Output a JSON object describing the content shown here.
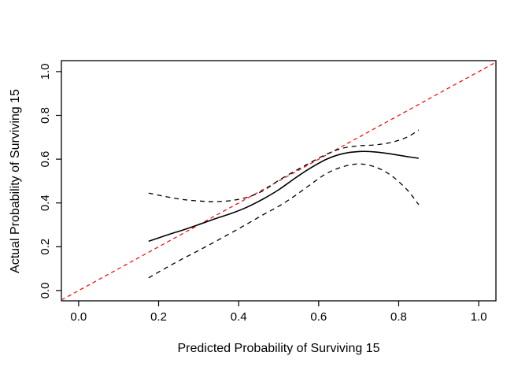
{
  "figure": {
    "background": "#ffffff",
    "frame_color": "#000000"
  },
  "chart_data": {
    "type": "line",
    "title": "",
    "xlabel": "Predicted Probability of Surviving 15",
    "ylabel": "Actual Probability of Surviving 15",
    "xlim": [
      -0.043,
      1.043
    ],
    "ylim": [
      -0.047,
      1.05
    ],
    "grid": false,
    "legend_position": "none",
    "x_ticks": {
      "values": [
        0.0,
        0.2,
        0.4,
        0.6,
        0.8,
        1.0
      ],
      "labels": [
        "0.0",
        "0.2",
        "0.4",
        "0.6",
        "0.8",
        "1.0"
      ]
    },
    "y_ticks": {
      "values": [
        0.0,
        0.2,
        0.4,
        0.6,
        0.8,
        1.0
      ],
      "labels": [
        "0.0",
        "0.2",
        "0.4",
        "0.6",
        "0.8",
        "1.0"
      ]
    },
    "series": [
      {
        "name": "ideal-line",
        "color": "#ff0000",
        "style": "dashed",
        "width": 1.2,
        "x": [
          -0.043,
          1.043
        ],
        "y": [
          -0.043,
          1.043
        ]
      },
      {
        "name": "calibration-curve",
        "color": "#000000",
        "style": "solid",
        "width": 1.6,
        "x": [
          0.175,
          0.22,
          0.26,
          0.3,
          0.34,
          0.38,
          0.42,
          0.46,
          0.5,
          0.54,
          0.58,
          0.62,
          0.66,
          0.7,
          0.74,
          0.78,
          0.82,
          0.85
        ],
        "y": [
          0.225,
          0.253,
          0.276,
          0.301,
          0.327,
          0.351,
          0.38,
          0.417,
          0.46,
          0.512,
          0.56,
          0.6,
          0.625,
          0.635,
          0.633,
          0.624,
          0.612,
          0.604
        ]
      },
      {
        "name": "upper-confidence-band",
        "color": "#000000",
        "style": "dashed",
        "width": 1.3,
        "x": [
          0.175,
          0.22,
          0.26,
          0.3,
          0.34,
          0.38,
          0.42,
          0.46,
          0.5,
          0.54,
          0.58,
          0.62,
          0.66,
          0.7,
          0.74,
          0.78,
          0.82,
          0.85
        ],
        "y": [
          0.445,
          0.428,
          0.416,
          0.409,
          0.406,
          0.411,
          0.425,
          0.455,
          0.503,
          0.545,
          0.585,
          0.623,
          0.65,
          0.661,
          0.665,
          0.676,
          0.7,
          0.733
        ]
      },
      {
        "name": "lower-confidence-band",
        "color": "#000000",
        "style": "dashed",
        "width": 1.3,
        "x": [
          0.175,
          0.22,
          0.26,
          0.3,
          0.34,
          0.38,
          0.42,
          0.46,
          0.5,
          0.54,
          0.58,
          0.62,
          0.66,
          0.7,
          0.74,
          0.78,
          0.82,
          0.85
        ],
        "y": [
          0.058,
          0.105,
          0.145,
          0.183,
          0.222,
          0.262,
          0.303,
          0.345,
          0.385,
          0.432,
          0.485,
          0.535,
          0.565,
          0.578,
          0.565,
          0.527,
          0.462,
          0.392
        ]
      }
    ]
  }
}
